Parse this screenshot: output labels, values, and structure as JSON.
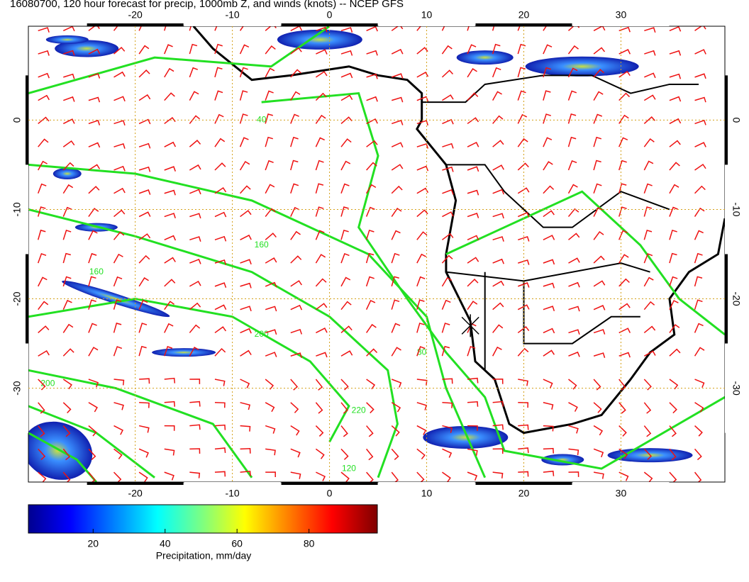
{
  "title": "16080700, 120 hour forecast for precip, 1000mb Z, and winds (knots) -- NCEP GFS",
  "map": {
    "xlim": [
      -31,
      40.7
    ],
    "ylim": [
      -40.5,
      10.5
    ],
    "xticks": [
      -20,
      -10,
      0,
      10,
      20,
      30
    ],
    "yticks": [
      0,
      -10,
      -20,
      -30
    ]
  },
  "colorbar": {
    "clim": [
      2,
      99
    ],
    "ticks": [
      20,
      40,
      60,
      80
    ],
    "label": "Precipitation, mm/day"
  },
  "contour_labels": [
    "160",
    "160",
    "200",
    "80",
    "220",
    "200",
    "40",
    "120"
  ]
}
